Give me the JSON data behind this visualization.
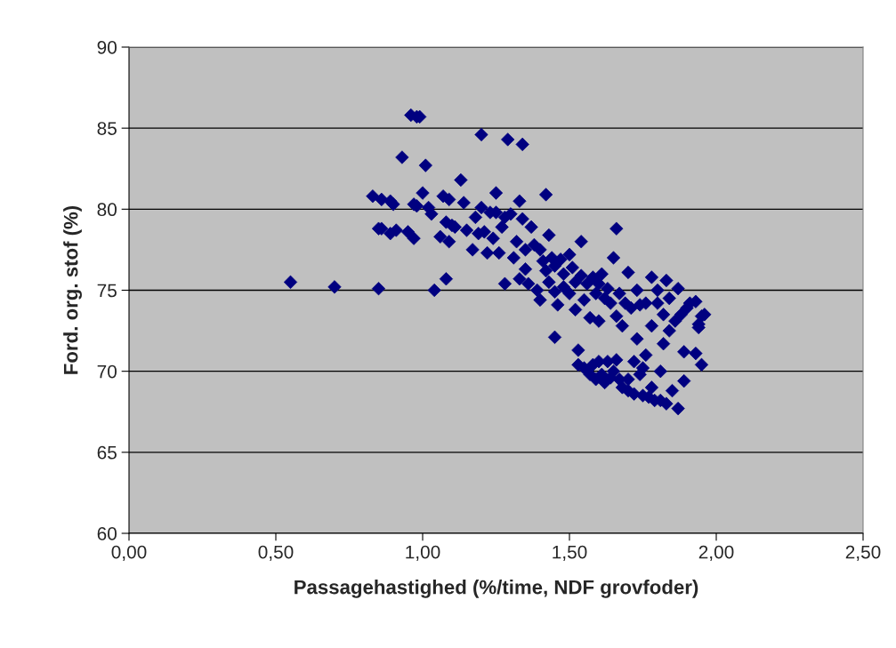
{
  "chart_data": {
    "type": "scatter",
    "xlabel": "Passagehastighed (%/time, NDF grovfoder)",
    "ylabel": "Ford. org. stof (%)",
    "xlim": [
      0,
      2.5
    ],
    "ylim": [
      60,
      90
    ],
    "xticks": [
      {
        "value": 0,
        "label": "0,00"
      },
      {
        "value": 0.5,
        "label": "0,50"
      },
      {
        "value": 1,
        "label": "1,00"
      },
      {
        "value": 1.5,
        "label": "1,50"
      },
      {
        "value": 2,
        "label": "2,00"
      },
      {
        "value": 2.5,
        "label": "2,50"
      }
    ],
    "yticks": [
      60,
      65,
      70,
      75,
      80,
      85,
      90
    ],
    "grid": "y",
    "marker": "diamond",
    "series": [
      {
        "color": "#000080",
        "x": [
          0.55,
          0.7,
          0.85,
          0.83,
          0.85,
          0.86,
          0.86,
          0.89,
          0.9,
          0.89,
          0.91,
          0.93,
          0.95,
          0.97,
          0.98,
          0.97,
          0.96,
          0.98,
          0.99,
          1.0,
          1.01,
          1.02,
          1.03,
          1.04,
          1.06,
          1.07,
          1.08,
          1.08,
          1.09,
          1.09,
          1.1,
          1.11,
          1.13,
          1.14,
          1.15,
          1.17,
          1.18,
          1.19,
          1.2,
          1.2,
          1.21,
          1.22,
          1.23,
          1.24,
          1.25,
          1.25,
          1.26,
          1.27,
          1.28,
          1.28,
          1.29,
          1.3,
          1.31,
          1.32,
          1.33,
          1.33,
          1.34,
          1.34,
          1.35,
          1.35,
          1.36,
          1.37,
          1.38,
          1.39,
          1.4,
          1.4,
          1.41,
          1.42,
          1.42,
          1.43,
          1.43,
          1.44,
          1.45,
          1.45,
          1.45,
          1.46,
          1.47,
          1.48,
          1.48,
          1.5,
          1.5,
          1.51,
          1.52,
          1.52,
          1.53,
          1.53,
          1.54,
          1.54,
          1.55,
          1.55,
          1.56,
          1.57,
          1.57,
          1.58,
          1.58,
          1.59,
          1.59,
          1.6,
          1.6,
          1.6,
          1.61,
          1.61,
          1.62,
          1.62,
          1.63,
          1.63,
          1.64,
          1.64,
          1.65,
          1.65,
          1.66,
          1.66,
          1.66,
          1.67,
          1.67,
          1.68,
          1.68,
          1.69,
          1.7,
          1.7,
          1.7,
          1.71,
          1.72,
          1.72,
          1.73,
          1.73,
          1.74,
          1.74,
          1.75,
          1.75,
          1.76,
          1.76,
          1.77,
          1.78,
          1.78,
          1.78,
          1.79,
          1.8,
          1.8,
          1.81,
          1.81,
          1.82,
          1.82,
          1.83,
          1.83,
          1.84,
          1.84,
          1.85,
          1.86,
          1.87,
          1.87,
          1.88,
          1.89,
          1.89,
          1.9,
          1.91,
          1.93,
          1.93,
          1.94,
          1.95,
          1.95,
          1.96,
          1.94
        ],
        "values": [
          75.5,
          75.2,
          75.1,
          80.8,
          78.8,
          78.8,
          80.6,
          80.5,
          80.3,
          78.5,
          78.7,
          83.2,
          78.6,
          80.3,
          80.2,
          78.2,
          85.8,
          85.7,
          85.7,
          81.0,
          82.7,
          80.1,
          79.7,
          75.0,
          78.3,
          80.8,
          79.2,
          75.7,
          80.6,
          78.0,
          79.0,
          78.9,
          81.8,
          80.4,
          78.7,
          77.5,
          79.5,
          78.5,
          80.1,
          84.6,
          78.6,
          77.3,
          79.8,
          78.2,
          81.0,
          79.8,
          77.3,
          78.9,
          79.5,
          75.4,
          84.3,
          79.7,
          77.0,
          78.0,
          75.7,
          80.5,
          84.0,
          79.4,
          77.5,
          76.3,
          75.4,
          78.9,
          77.8,
          75.0,
          74.4,
          77.5,
          76.8,
          76.2,
          80.9,
          78.4,
          75.5,
          77.0,
          72.1,
          74.9,
          76.5,
          74.1,
          76.9,
          76.0,
          75.2,
          77.2,
          74.8,
          76.4,
          73.8,
          75.5,
          70.4,
          71.3,
          78.0,
          75.9,
          74.4,
          70.2,
          75.4,
          69.8,
          73.3,
          75.8,
          70.4,
          69.5,
          74.8,
          75.4,
          70.6,
          73.1,
          69.8,
          76.0,
          69.3,
          74.5,
          70.6,
          75.1,
          69.6,
          74.2,
          77.0,
          70.0,
          78.8,
          73.4,
          70.7,
          69.5,
          74.8,
          72.8,
          69.0,
          74.2,
          69.5,
          76.1,
          68.8,
          73.9,
          70.6,
          68.6,
          72.0,
          75.0,
          69.8,
          74.1,
          68.5,
          70.2,
          74.2,
          71.0,
          68.4,
          72.8,
          75.8,
          69.0,
          68.2,
          74.2,
          75.0,
          70.0,
          68.2,
          71.7,
          73.5,
          75.6,
          68.0,
          72.5,
          74.5,
          68.8,
          73.1,
          67.7,
          75.1,
          73.5,
          71.2,
          69.4,
          73.9,
          74.2,
          74.3,
          71.1,
          72.7,
          73.4,
          70.4,
          73.5,
          72.9
        ]
      }
    ]
  }
}
